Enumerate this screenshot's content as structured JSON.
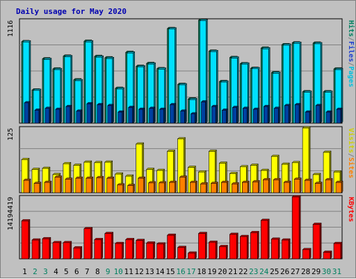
{
  "chart_data": {
    "type": "bar",
    "title": "Daily usage for May 2020",
    "days": [
      "1",
      "2",
      "3",
      "4",
      "5",
      "6",
      "7",
      "8",
      "9",
      "10",
      "11",
      "12",
      "13",
      "14",
      "15",
      "16",
      "17",
      "18",
      "19",
      "20",
      "21",
      "22",
      "23",
      "24",
      "25",
      "26",
      "27",
      "28",
      "29",
      "30",
      "31"
    ],
    "weekend_days": [
      "2",
      "3",
      "9",
      "10",
      "16",
      "17",
      "23",
      "24",
      "30",
      "31"
    ],
    "panels": [
      {
        "id": "hits",
        "ymax_label": "1116",
        "ymax": 1116,
        "legend": [
          {
            "label": "Pages",
            "color": "#00c0e0"
          },
          {
            "label": "/",
            "color": "#808080"
          },
          {
            "label": "Files",
            "color": "#2040d0"
          },
          {
            "label": "/",
            "color": "#808080"
          },
          {
            "label": "Hits",
            "color": "#008060"
          }
        ],
        "series": [
          {
            "name": "Hits",
            "color": "#00805a",
            "values": [
              883,
              359,
              697,
              587,
              726,
              469,
              888,
              723,
              708,
              377,
              767,
              616,
              647,
              590,
              1025,
              420,
              262,
              1116,
              780,
              451,
              711,
              644,
              594,
              813,
              547,
              850,
              870,
              340,
              867,
              340,
              587
            ]
          },
          {
            "name": "Files",
            "color": "#00e0ff",
            "values": [
              880,
              355,
              690,
              580,
              720,
              460,
              880,
              715,
              700,
              370,
              760,
              610,
              640,
              585,
              1020,
              415,
              255,
              1110,
              775,
              445,
              705,
              640,
              590,
              805,
              540,
              845,
              865,
              335,
              860,
              335,
              580
            ]
          },
          {
            "name": "Pages",
            "color": "#0040a0",
            "values": [
              220,
              140,
              160,
              150,
              180,
              130,
              210,
              200,
              190,
              120,
              170,
              150,
              160,
              150,
              200,
              130,
              100,
              230,
              180,
              140,
              170,
              160,
              150,
              180,
              160,
              190,
              200,
              120,
              190,
              120,
              150
            ]
          }
        ]
      },
      {
        "id": "visits",
        "ymax_label": "125",
        "ymax": 125,
        "legend": [
          {
            "label": "Sites",
            "color": "#ff8000"
          },
          {
            "label": "/",
            "color": "#808080"
          },
          {
            "label": "Visits",
            "color": "#d0d000"
          }
        ],
        "series": [
          {
            "name": "Visits",
            "color": "#ffff00",
            "values": [
              64,
              45,
              47,
              35,
              56,
              53,
              59,
              58,
              59,
              36,
              32,
              94,
              45,
              43,
              80,
              104,
              49,
              40,
              80,
              57,
              37,
              50,
              53,
              43,
              70,
              55,
              58,
              125,
              35,
              78,
              40
            ]
          },
          {
            "name": "Sites",
            "color": "#ff8000",
            "values": [
              24,
              18,
              20,
              30,
              26,
              28,
              28,
              29,
              28,
              15,
              14,
              28,
              19,
              19,
              20,
              30,
              20,
              17,
              18,
              20,
              17,
              20,
              21,
              25,
              25,
              20,
              26,
              24,
              18,
              25,
              20
            ]
          }
        ]
      },
      {
        "id": "kbytes",
        "ymax_label": "14194419",
        "ymax": 14194419,
        "legend": [
          {
            "label": "KBytes",
            "color": "#ff0000"
          }
        ],
        "series": [
          {
            "name": "KBytes",
            "color": "#ff0000",
            "values": [
              8700000,
              4300000,
              4600000,
              3700000,
              3700000,
              2500000,
              6900000,
              4400000,
              5800000,
              3500000,
              4400000,
              4200000,
              3600000,
              3400000,
              5400000,
              2600000,
              1300000,
              5800000,
              3800000,
              2800000,
              5600000,
              5100000,
              6000000,
              8800000,
              4500000,
              4300000,
              14194419,
              2100000,
              7900000,
              1500000,
              3500000
            ]
          }
        ]
      }
    ]
  }
}
